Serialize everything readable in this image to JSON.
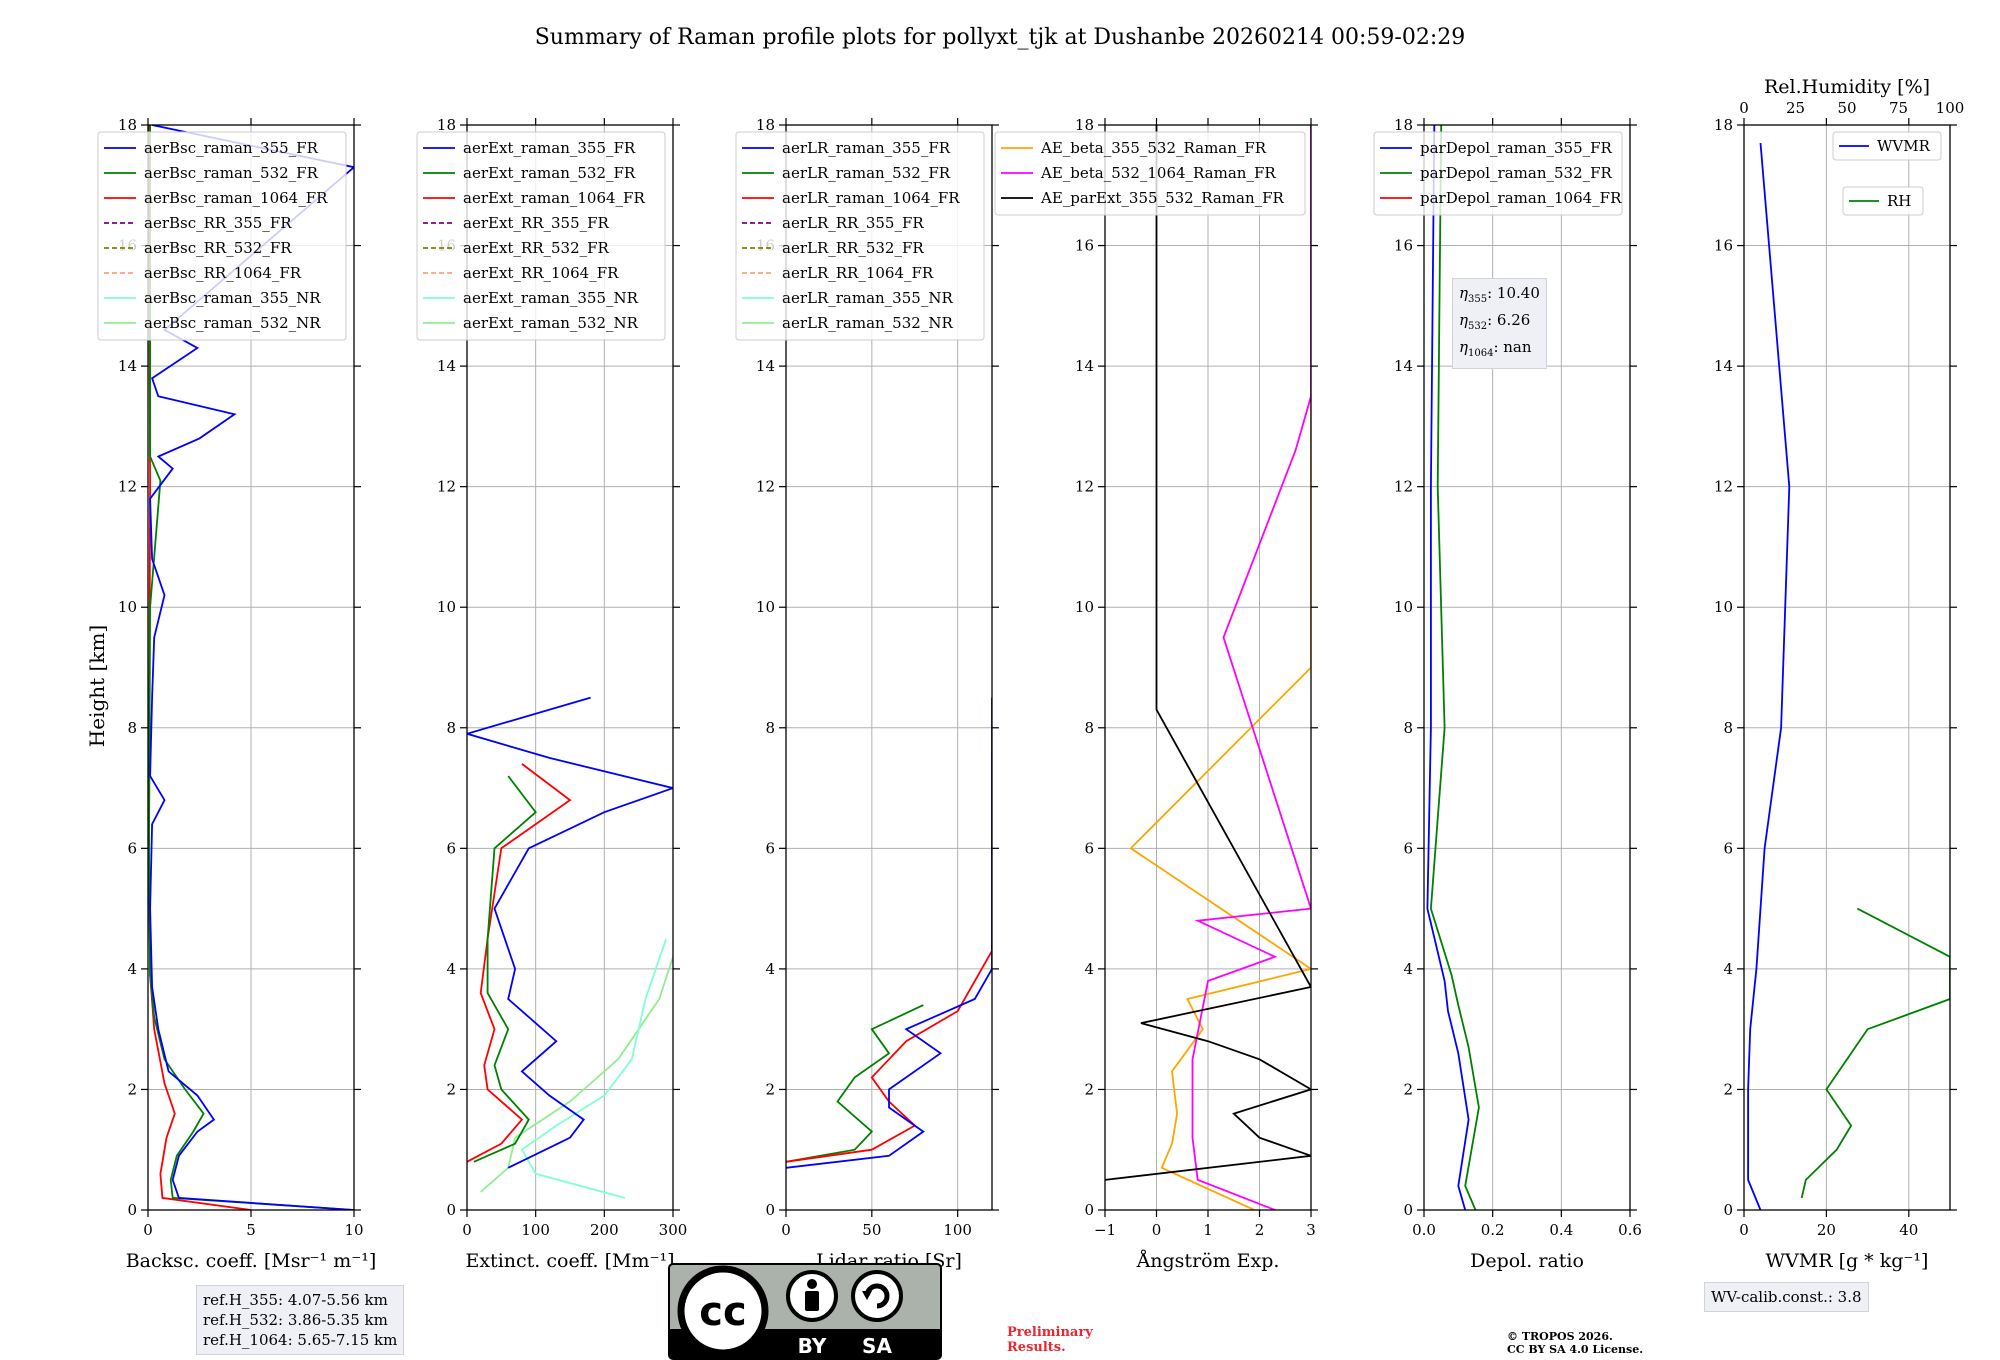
{
  "title": "Summary of Raman profile plots for pollyxt_tjk at Dushanbe 20260214 00:59-02:29",
  "ylabel": "Height [km]",
  "yticks": [
    0,
    2,
    4,
    6,
    8,
    10,
    12,
    14,
    16,
    18
  ],
  "panels": [
    {
      "id": "bsc",
      "xlabel": "Backsc. coeff. [Msr⁻¹ m⁻¹]",
      "xlim": [
        0,
        10
      ],
      "xticks": [
        0,
        5,
        10
      ],
      "legend": [
        "aerBsc_raman_355_FR",
        "aerBsc_raman_532_FR",
        "aerBsc_raman_1064_FR",
        "aerBsc_RR_355_FR",
        "aerBsc_RR_532_FR",
        "aerBsc_RR_1064_FR",
        "aerBsc_raman_355_NR",
        "aerBsc_raman_532_NR"
      ]
    },
    {
      "id": "ext",
      "xlabel": "Extinct. coeff. [Mm⁻¹]",
      "xlim": [
        0,
        300
      ],
      "xticks": [
        0,
        100,
        200,
        300
      ],
      "legend": [
        "aerExt_raman_355_FR",
        "aerExt_raman_532_FR",
        "aerExt_raman_1064_FR",
        "aerExt_RR_355_FR",
        "aerExt_RR_532_FR",
        "aerExt_RR_1064_FR",
        "aerExt_raman_355_NR",
        "aerExt_raman_532_NR"
      ]
    },
    {
      "id": "lr",
      "xlabel": "Lidar ratio [Sr]",
      "xlim": [
        0,
        120
      ],
      "xticks": [
        0,
        50,
        100
      ],
      "legend": [
        "aerLR_raman_355_FR",
        "aerLR_raman_532_FR",
        "aerLR_raman_1064_FR",
        "aerLR_RR_355_FR",
        "aerLR_RR_532_FR",
        "aerLR_RR_1064_FR",
        "aerLR_raman_355_NR",
        "aerLR_raman_532_NR"
      ]
    },
    {
      "id": "ae",
      "xlabel": "Ångström Exp.",
      "xlim": [
        -1,
        3
      ],
      "xticks": [
        -1,
        0,
        1,
        2,
        3
      ],
      "legend": [
        "AE_beta_355_532_Raman_FR",
        "AE_beta_532_1064_Raman_FR",
        "AE_parExt_355_532_Raman_FR"
      ]
    },
    {
      "id": "depol",
      "xlabel": "Depol. ratio",
      "xlim": [
        0,
        0.6
      ],
      "xticks": [
        0.0,
        0.2,
        0.4,
        0.6
      ],
      "legend": [
        "parDepol_raman_355_FR",
        "parDepol_raman_532_FR",
        "parDepol_raman_1064_FR"
      ]
    },
    {
      "id": "wv",
      "xlabel": "WVMR [g * kg⁻¹]",
      "xlim": [
        0,
        50
      ],
      "xticks": [
        0,
        20,
        40
      ],
      "top_label": "Rel.Humidity [%]",
      "top_xlim": [
        0,
        100
      ],
      "top_xticks": [
        0,
        25,
        50,
        75,
        100
      ],
      "legend": [
        "WVMR",
        "RH"
      ]
    }
  ],
  "eta_text": [
    {
      "sub": "355",
      "value": ": 10.40"
    },
    {
      "sub": "532",
      "value": ": 6.26"
    },
    {
      "sub": "1064",
      "value": ": nan"
    }
  ],
  "ref_heights": [
    "ref.H_355: 4.07-5.56 km",
    "ref.H_532: 3.86-5.35 km",
    "ref.H_1064: 5.65-7.15 km"
  ],
  "wv_calib": "WV-calib.const.: 3.8",
  "preliminary": [
    "Preliminary",
    "Results."
  ],
  "copyright": [
    "© TROPOS 2026.",
    "CC BY SA 4.0 License."
  ],
  "license_badge": {
    "by": "BY",
    "sa": "SA"
  },
  "colors": {
    "c355": "#0000ff",
    "c532": "#008000",
    "c1064": "#ff0000",
    "rr355": "#800080",
    "rr532": "#808000",
    "rr1064": "#ffa07a",
    "nr355": "#7fffd4",
    "nr532": "#90ee90",
    "ae1": "#ffa500",
    "ae2": "#ff00ff",
    "ae3": "#000000"
  },
  "chart_data": {
    "type": "line",
    "title": "Summary of Raman profile plots for pollyxt_tjk at Dushanbe 20260214 00:59-02:29",
    "ylabel": "Height [km]",
    "ylim": [
      0,
      18
    ],
    "profiles": {
      "aerBsc_raman_355_FR": [
        [
          10,
          0
        ],
        [
          1.5,
          0.2
        ],
        [
          1.2,
          0.5
        ],
        [
          1.5,
          0.9
        ],
        [
          2.4,
          1.3
        ],
        [
          3.2,
          1.5
        ],
        [
          2.4,
          1.9
        ],
        [
          1.0,
          2.3
        ],
        [
          0.5,
          3.0
        ],
        [
          0.2,
          3.7
        ],
        [
          0.1,
          5
        ],
        [
          0.2,
          6.4
        ],
        [
          0.8,
          6.8
        ],
        [
          0.1,
          7.2
        ],
        [
          0.2,
          8.5
        ],
        [
          0.3,
          9.5
        ],
        [
          0.8,
          10.2
        ],
        [
          0.2,
          10.8
        ],
        [
          0.1,
          11.8
        ],
        [
          1.2,
          12.3
        ],
        [
          0.5,
          12.5
        ],
        [
          2.5,
          12.8
        ],
        [
          4.2,
          13.2
        ],
        [
          0.5,
          13.5
        ],
        [
          0.2,
          13.8
        ],
        [
          2.4,
          14.3
        ],
        [
          0.8,
          14.6
        ],
        [
          10,
          17.3
        ],
        [
          0.2,
          18
        ]
      ],
      "aerBsc_raman_532_FR": [
        [
          10,
          0
        ],
        [
          1.2,
          0.2
        ],
        [
          1.1,
          0.5
        ],
        [
          1.4,
          0.9
        ],
        [
          2.2,
          1.3
        ],
        [
          2.7,
          1.6
        ],
        [
          1.8,
          2.0
        ],
        [
          0.8,
          2.5
        ],
        [
          0.3,
          3.2
        ],
        [
          0.1,
          3.9
        ],
        [
          0.05,
          6
        ],
        [
          0.1,
          10
        ],
        [
          0.6,
          12.1
        ],
        [
          0.1,
          12.5
        ],
        [
          0.1,
          18
        ]
      ],
      "aerBsc_raman_1064_FR": [
        [
          5,
          0
        ],
        [
          0.7,
          0.2
        ],
        [
          0.6,
          0.6
        ],
        [
          0.9,
          1.2
        ],
        [
          1.3,
          1.6
        ],
        [
          0.8,
          2.1
        ],
        [
          0.3,
          3.0
        ],
        [
          0.1,
          3.9
        ],
        [
          0.05,
          6
        ],
        [
          0.1,
          12
        ],
        [
          0.05,
          18
        ]
      ],
      "aerExt_raman_355_FR": [
        [
          60,
          0.7
        ],
        [
          150,
          1.2
        ],
        [
          170,
          1.5
        ],
        [
          120,
          1.9
        ],
        [
          80,
          2.3
        ],
        [
          130,
          2.8
        ],
        [
          60,
          3.5
        ],
        [
          70,
          4.0
        ],
        [
          40,
          5.0
        ],
        [
          90,
          6.0
        ],
        [
          200,
          6.6
        ],
        [
          300,
          7.0
        ],
        [
          120,
          7.5
        ],
        [
          0,
          7.9
        ],
        [
          180,
          8.5
        ]
      ],
      "aerExt_raman_532_FR": [
        [
          10,
          0.8
        ],
        [
          70,
          1.1
        ],
        [
          90,
          1.5
        ],
        [
          50,
          2.0
        ],
        [
          40,
          2.4
        ],
        [
          60,
          3.0
        ],
        [
          30,
          3.6
        ],
        [
          30,
          4.5
        ],
        [
          40,
          6.0
        ],
        [
          100,
          6.6
        ],
        [
          60,
          7.2
        ]
      ],
      "aerExt_raman_1064_FR": [
        [
          0,
          0.8
        ],
        [
          50,
          1.1
        ],
        [
          80,
          1.5
        ],
        [
          30,
          2.0
        ],
        [
          25,
          2.4
        ],
        [
          40,
          3.0
        ],
        [
          20,
          3.6
        ],
        [
          30,
          4.5
        ],
        [
          50,
          6.0
        ],
        [
          150,
          6.8
        ],
        [
          80,
          7.4
        ]
      ],
      "aerExt_raman_355_NR": [
        [
          230,
          0.2
        ],
        [
          100,
          0.6
        ],
        [
          80,
          1.0
        ],
        [
          130,
          1.4
        ],
        [
          200,
          1.9
        ],
        [
          240,
          2.5
        ],
        [
          260,
          3.5
        ],
        [
          290,
          4.5
        ]
      ],
      "aerExt_raman_532_NR": [
        [
          20,
          0.3
        ],
        [
          60,
          0.7
        ],
        [
          70,
          1.2
        ],
        [
          150,
          1.8
        ],
        [
          220,
          2.5
        ],
        [
          280,
          3.5
        ],
        [
          300,
          4.2
        ]
      ],
      "aerLR_raman_355_FR": [
        [
          0,
          0.7
        ],
        [
          60,
          0.9
        ],
        [
          80,
          1.3
        ],
        [
          60,
          1.7
        ],
        [
          60,
          2.0
        ],
        [
          90,
          2.6
        ],
        [
          70,
          3.0
        ],
        [
          110,
          3.5
        ],
        [
          120,
          4.0
        ],
        [
          120,
          8.5
        ]
      ],
      "aerLR_raman_532_FR": [
        [
          0,
          0.8
        ],
        [
          40,
          1.0
        ],
        [
          50,
          1.3
        ],
        [
          30,
          1.8
        ],
        [
          40,
          2.2
        ],
        [
          60,
          2.6
        ],
        [
          50,
          3.0
        ],
        [
          80,
          3.4
        ]
      ],
      "aerLR_raman_1064_FR": [
        [
          0,
          0.8
        ],
        [
          50,
          1.0
        ],
        [
          75,
          1.4
        ],
        [
          60,
          1.8
        ],
        [
          50,
          2.2
        ],
        [
          70,
          2.8
        ],
        [
          100,
          3.3
        ],
        [
          120,
          4.3
        ],
        [
          120,
          7.6
        ]
      ],
      "AE_beta_355_532_Raman_FR": [
        [
          1.9,
          0
        ],
        [
          0.1,
          0.7
        ],
        [
          0.3,
          1.1
        ],
        [
          0.4,
          1.6
        ],
        [
          0.3,
          2.3
        ],
        [
          0.9,
          3.0
        ],
        [
          0.6,
          3.5
        ],
        [
          3,
          4.0
        ],
        [
          -0.5,
          6.0
        ],
        [
          3,
          9.0
        ],
        [
          3,
          18
        ]
      ],
      "AE_beta_532_1064_Raman_FR": [
        [
          2.3,
          0
        ],
        [
          0.8,
          0.5
        ],
        [
          0.7,
          1.2
        ],
        [
          0.7,
          2.5
        ],
        [
          1.0,
          3.8
        ],
        [
          2.3,
          4.2
        ],
        [
          0.8,
          4.8
        ],
        [
          3,
          5.0
        ],
        [
          1.3,
          9.5
        ],
        [
          2.7,
          12.6
        ],
        [
          3,
          13.5
        ],
        [
          3,
          18
        ]
      ],
      "AE_parExt_355_532_Raman_FR": [
        [
          -1,
          0.5
        ],
        [
          3,
          0.9
        ],
        [
          2,
          1.2
        ],
        [
          1.5,
          1.6
        ],
        [
          3,
          2.0
        ],
        [
          2,
          2.5
        ],
        [
          1,
          2.8
        ],
        [
          -0.3,
          3.1
        ],
        [
          3,
          3.7
        ],
        [
          0,
          8.3
        ],
        [
          0,
          18
        ]
      ],
      "parDepol_raman_355_FR": [
        [
          0.12,
          0
        ],
        [
          0.1,
          0.4
        ],
        [
          0.13,
          1.5
        ],
        [
          0.1,
          2.6
        ],
        [
          0.07,
          3.3
        ],
        [
          0.06,
          3.8
        ],
        [
          0.01,
          5
        ],
        [
          0.02,
          8
        ],
        [
          0.02,
          12
        ],
        [
          0.03,
          18
        ]
      ],
      "parDepol_raman_532_FR": [
        [
          0.15,
          0
        ],
        [
          0.12,
          0.4
        ],
        [
          0.16,
          1.7
        ],
        [
          0.13,
          2.7
        ],
        [
          0.1,
          3.4
        ],
        [
          0.08,
          3.9
        ],
        [
          0.02,
          5
        ],
        [
          0.06,
          8
        ],
        [
          0.04,
          12
        ],
        [
          0.05,
          18
        ]
      ],
      "WVMR": [
        [
          4,
          0
        ],
        [
          1,
          0.5
        ],
        [
          1,
          2
        ],
        [
          1.5,
          3
        ],
        [
          3,
          4
        ],
        [
          5,
          6
        ],
        [
          9,
          8
        ],
        [
          10,
          10
        ],
        [
          11,
          12
        ],
        [
          4,
          17.7
        ]
      ],
      "RH": [
        [
          28,
          0.2
        ],
        [
          30,
          0.5
        ],
        [
          45,
          1.0
        ],
        [
          52,
          1.4
        ],
        [
          40,
          2
        ],
        [
          60,
          3
        ],
        [
          100,
          3.5
        ],
        [
          100,
          4.2
        ],
        [
          55,
          5
        ]
      ]
    },
    "annotations": [
      "η355: 10.40",
      "η532: 6.26",
      "η1064: nan"
    ]
  }
}
